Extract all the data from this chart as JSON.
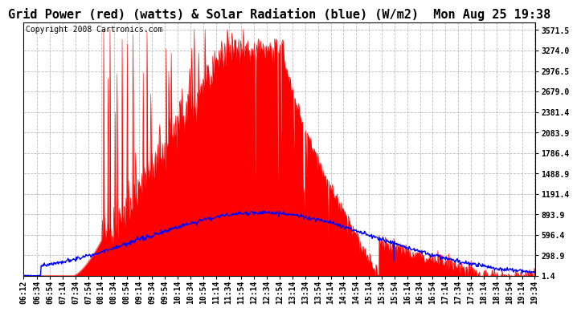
{
  "title": "Grid Power (red) (watts) & Solar Radiation (blue) (W/m2)  Mon Aug 25 19:38",
  "copyright": "Copyright 2008 Cartronics.com",
  "background_color": "#FFFFFF",
  "plot_bg_color": "#FFFFFF",
  "x_start_min": 372,
  "x_end_min": 1175,
  "yticks": [
    1.4,
    298.9,
    596.4,
    893.9,
    1191.4,
    1488.9,
    1786.4,
    2083.9,
    2381.4,
    2679.0,
    2976.5,
    3274.0,
    3571.5
  ],
  "ymax": 3571.5,
  "ymin": 0,
  "grid_color": "#AAAAAA",
  "red_color": "#FF0000",
  "blue_color": "#0000FF",
  "title_fontsize": 11,
  "copyright_fontsize": 7,
  "tick_fontsize": 7
}
